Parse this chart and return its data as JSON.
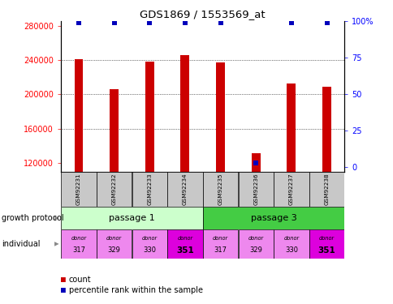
{
  "title": "GDS1869 / 1553569_at",
  "samples": [
    "GSM92231",
    "GSM92232",
    "GSM92233",
    "GSM92234",
    "GSM92235",
    "GSM92236",
    "GSM92237",
    "GSM92238"
  ],
  "counts": [
    241000,
    206000,
    238000,
    246000,
    237000,
    132000,
    213000,
    209000
  ],
  "percentiles": [
    99,
    99,
    99,
    99,
    99,
    3,
    99,
    99
  ],
  "ylim_left": [
    110000,
    285000
  ],
  "ylim_right": [
    -3,
    100
  ],
  "yticks_left": [
    120000,
    160000,
    200000,
    240000,
    280000
  ],
  "yticks_right": [
    0,
    25,
    50,
    75,
    100
  ],
  "ytick_right_labels": [
    "0",
    "25",
    "50",
    "75",
    "100%"
  ],
  "grid_yticks": [
    160000,
    200000,
    240000
  ],
  "passage_labels": [
    "passage 1",
    "passage 3"
  ],
  "passage_ranges": [
    [
      0,
      3
    ],
    [
      4,
      7
    ]
  ],
  "passage_color_light": "#ccffcc",
  "passage_color_dark": "#44cc44",
  "individual_numbers": [
    "317",
    "329",
    "330",
    "351",
    "317",
    "329",
    "330",
    "351"
  ],
  "individual_bold": [
    false,
    false,
    false,
    true,
    false,
    false,
    false,
    true
  ],
  "individual_color_light": "#ee88ee",
  "individual_color_bold": "#dd00dd",
  "bar_color": "#cc0000",
  "dot_color": "#0000bb",
  "sample_box_color": "#c8c8c8",
  "bar_width": 0.25
}
